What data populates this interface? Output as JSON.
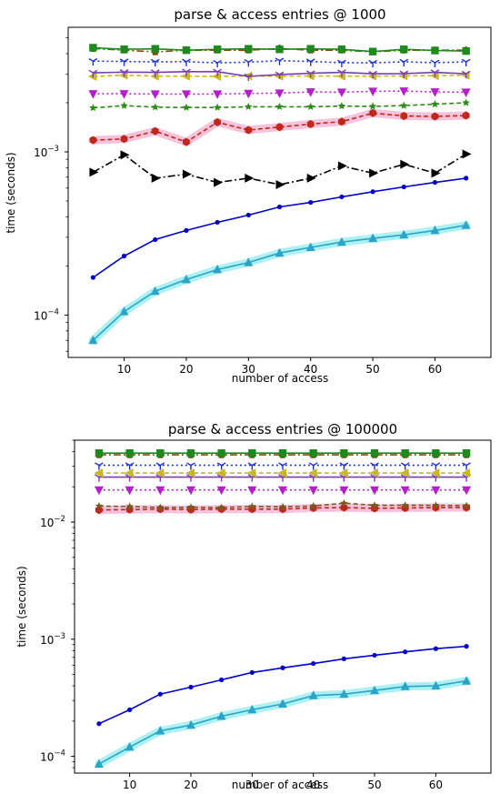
{
  "chart_data": [
    {
      "type": "line",
      "title": "parse & access entries @ 1000",
      "xlabel": "number of access",
      "ylabel": "time (seconds)",
      "yscale": "log",
      "xlim": [
        1,
        69
      ],
      "ylim": [
        5.5e-05,
        0.0058
      ],
      "x_ticks": [
        10,
        20,
        30,
        40,
        50,
        60
      ],
      "y_ticks": [
        {
          "value": 0.0001,
          "base": "10",
          "exp": "−4"
        },
        {
          "value": 0.001,
          "base": "10",
          "exp": "−3"
        }
      ],
      "grid": false,
      "x": [
        5,
        10,
        15,
        20,
        25,
        30,
        35,
        40,
        45,
        50,
        55,
        60,
        65
      ],
      "series": [
        {
          "color": "#0000cc",
          "marker": "dot",
          "dash": "",
          "values": [
            0.00017,
            0.00023,
            0.00029,
            0.00033,
            0.00037,
            0.00041,
            0.00046,
            0.00049,
            0.00053,
            0.00057,
            0.00061,
            0.00065,
            0.00069
          ]
        },
        {
          "color": "#2aa4c9",
          "marker": "triangle",
          "dash": "",
          "halo": "#9feff0",
          "values": [
            7e-05,
            0.000105,
            0.00014,
            0.000165,
            0.00019,
            0.00021,
            0.00024,
            0.00026,
            0.00028,
            0.000295,
            0.00031,
            0.00033,
            0.000355
          ]
        },
        {
          "color": "#000000",
          "marker": "triangle-right",
          "dash": "8,3,2,3",
          "values": [
            0.00075,
            0.00096,
            0.00069,
            0.00073,
            0.00065,
            0.00069,
            0.00063,
            0.00069,
            0.00082,
            0.00074,
            0.00084,
            0.00074,
            0.00097
          ]
        },
        {
          "color": "#c0281c",
          "marker": "hexagon",
          "dash": "5,3",
          "halo": "#f6b7d6",
          "values": [
            0.00118,
            0.0012,
            0.00134,
            0.00115,
            0.00152,
            0.00136,
            0.00142,
            0.00148,
            0.00153,
            0.00173,
            0.00166,
            0.00165,
            0.00167
          ]
        },
        {
          "color": "#2f8a1c",
          "marker": "star",
          "dash": "5,3",
          "values": [
            0.00186,
            0.00192,
            0.00188,
            0.00187,
            0.00187,
            0.00189,
            0.00189,
            0.00189,
            0.00191,
            0.0019,
            0.00192,
            0.00196,
            0.002
          ]
        },
        {
          "color": "#b41fcb",
          "marker": "triangle-down",
          "dash": "2,3",
          "values": [
            0.00227,
            0.00227,
            0.00226,
            0.00226,
            0.00226,
            0.00228,
            0.00229,
            0.00233,
            0.00232,
            0.00235,
            0.00236,
            0.00233,
            0.00232
          ]
        },
        {
          "color": "#c9b81c",
          "marker": "triangle-left",
          "dash": "5,3",
          "values": [
            0.0029,
            0.00295,
            0.00291,
            0.00291,
            0.0029,
            0.00292,
            0.00291,
            0.00292,
            0.00291,
            0.00291,
            0.00292,
            0.00293,
            0.00295
          ]
        },
        {
          "color": "#7a3bb8",
          "marker": "tri-down",
          "dash": "",
          "values": [
            0.00305,
            0.00308,
            0.00307,
            0.0031,
            0.0031,
            0.0029,
            0.00298,
            0.00303,
            0.00307,
            0.00301,
            0.00302,
            0.00307,
            0.00301
          ]
        },
        {
          "color": "#1c2fe0",
          "marker": "tri-down",
          "dash": "2,3",
          "values": [
            0.0036,
            0.00358,
            0.00356,
            0.00357,
            0.00351,
            0.00355,
            0.00362,
            0.00358,
            0.00352,
            0.00351,
            0.00356,
            0.00352,
            0.00356
          ]
        },
        {
          "color": "#8b4513",
          "marker": "pentagon",
          "dash": "8,3,2,3",
          "values": [
            0.0043,
            0.0042,
            0.0041,
            0.0042,
            0.0042,
            0.0042,
            0.0043,
            0.0042,
            0.0042,
            0.0041,
            0.0042,
            0.0042,
            0.0042
          ]
        },
        {
          "color": "#1e8a1e",
          "marker": "square",
          "dash": "",
          "values": [
            0.00435,
            0.00425,
            0.00428,
            0.0042,
            0.00425,
            0.00428,
            0.00425,
            0.00428,
            0.00425,
            0.00412,
            0.00425,
            0.00418,
            0.00415
          ]
        }
      ]
    },
    {
      "type": "line",
      "title": "parse & access entries @ 100000",
      "xlabel": "number of access",
      "ylabel": "time (seconds)",
      "yscale": "log",
      "xlim": [
        1,
        69
      ],
      "ylim": [
        7.2e-05,
        0.05
      ],
      "x_ticks": [
        10,
        20,
        30,
        40,
        50,
        60
      ],
      "y_ticks": [
        {
          "value": 0.0001,
          "base": "10",
          "exp": "−4"
        },
        {
          "value": 0.001,
          "base": "10",
          "exp": "−3"
        },
        {
          "value": 0.01,
          "base": "10",
          "exp": "−2"
        }
      ],
      "grid": false,
      "x": [
        5,
        10,
        15,
        20,
        25,
        30,
        35,
        40,
        45,
        50,
        55,
        60,
        65
      ],
      "series": [
        {
          "color": "#0000cc",
          "marker": "dot",
          "dash": "",
          "values": [
            0.00019,
            0.00025,
            0.00034,
            0.00039,
            0.00045,
            0.00052,
            0.00057,
            0.00062,
            0.00068,
            0.00073,
            0.00078,
            0.00083,
            0.00087
          ]
        },
        {
          "color": "#2aa4c9",
          "marker": "triangle",
          "dash": "",
          "halo": "#9feff0",
          "values": [
            8.6e-05,
            0.00012,
            0.000165,
            0.000185,
            0.00022,
            0.00025,
            0.00028,
            0.00033,
            0.00034,
            0.000365,
            0.000395,
            0.0004,
            0.00044
          ]
        },
        {
          "color": "#c0281c",
          "marker": "hexagon",
          "dash": "5,3",
          "halo": "#f6b7d6",
          "values": [
            0.0127,
            0.0128,
            0.0129,
            0.0128,
            0.0129,
            0.0129,
            0.0129,
            0.0132,
            0.0133,
            0.0131,
            0.0132,
            0.0133,
            0.0133
          ]
        },
        {
          "color": "#7a5a20",
          "marker": "star",
          "dash": "5,3",
          "values": [
            0.0137,
            0.0136,
            0.0133,
            0.0134,
            0.0133,
            0.0136,
            0.0135,
            0.0137,
            0.0145,
            0.0139,
            0.0139,
            0.0139,
            0.0138
          ]
        },
        {
          "color": "#b41fcb",
          "marker": "triangle-down",
          "dash": "2,3",
          "values": [
            0.0188,
            0.0188,
            0.0188,
            0.0188,
            0.0188,
            0.0188,
            0.0188,
            0.0188,
            0.0188,
            0.0188,
            0.0188,
            0.0188,
            0.0188
          ]
        },
        {
          "color": "#7a3bb8",
          "marker": "tri-down",
          "dash": "",
          "values": [
            0.0242,
            0.0242,
            0.0242,
            0.0242,
            0.0242,
            0.0242,
            0.0242,
            0.0242,
            0.0242,
            0.0242,
            0.0242,
            0.0242,
            0.0242
          ]
        },
        {
          "color": "#c9b81c",
          "marker": "triangle-left",
          "dash": "5,3",
          "values": [
            0.0262,
            0.0262,
            0.0262,
            0.0262,
            0.0262,
            0.0262,
            0.0262,
            0.0262,
            0.0262,
            0.0262,
            0.0262,
            0.0262,
            0.0262
          ]
        },
        {
          "color": "#1c2fe0",
          "marker": "tri-down",
          "dash": "2,3",
          "values": [
            0.0305,
            0.0305,
            0.0305,
            0.0305,
            0.0305,
            0.0305,
            0.0305,
            0.0305,
            0.0305,
            0.0305,
            0.0305,
            0.0305,
            0.0305
          ]
        },
        {
          "color": "#8b4513",
          "marker": "pentagon",
          "dash": "8,3,2,3",
          "values": [
            0.0375,
            0.0375,
            0.0375,
            0.0375,
            0.0375,
            0.0375,
            0.0375,
            0.0375,
            0.0375,
            0.0375,
            0.0375,
            0.0375,
            0.0375
          ]
        },
        {
          "color": "#1e8a1e",
          "marker": "square",
          "dash": "",
          "values": [
            0.0388,
            0.0388,
            0.0388,
            0.0388,
            0.0388,
            0.0388,
            0.0388,
            0.0388,
            0.0388,
            0.0388,
            0.0388,
            0.0388,
            0.0388
          ]
        }
      ]
    }
  ]
}
